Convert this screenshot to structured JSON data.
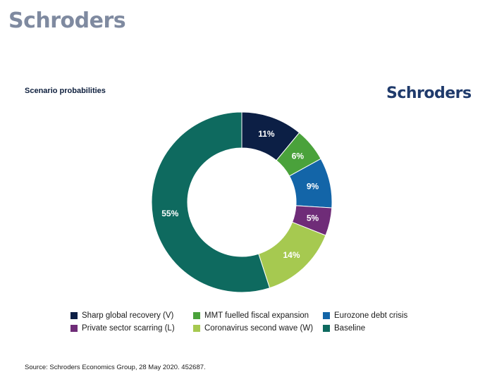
{
  "brand": {
    "top_logo": "Schroders",
    "chart_logo": "Schroders"
  },
  "source": "Source: Schroders Economics Group, 28 May 2020. 452687.",
  "chart_data": {
    "type": "pie",
    "title": "Scenario probabilities",
    "donut": true,
    "legend_position": "bottom",
    "slices": [
      {
        "name": "Sharp global recovery (V)",
        "value": 11,
        "label": "11%",
        "color": "#0c1f45"
      },
      {
        "name": "MMT fuelled fiscal expansion",
        "value": 6,
        "label": "6%",
        "color": "#4aa23b"
      },
      {
        "name": "Eurozone debt crisis",
        "value": 9,
        "label": "9%",
        "color": "#1365a8"
      },
      {
        "name": "Private sector scarring (L)",
        "value": 5,
        "label": "5%",
        "color": "#6f2c78"
      },
      {
        "name": "Coronavirus second wave (W)",
        "value": 14,
        "label": "14%",
        "color": "#a6c950"
      },
      {
        "name": "Baseline",
        "value": 55,
        "label": "55%",
        "color": "#0e6a5f"
      }
    ],
    "legend_order": [
      0,
      1,
      2,
      3,
      4,
      5
    ]
  }
}
